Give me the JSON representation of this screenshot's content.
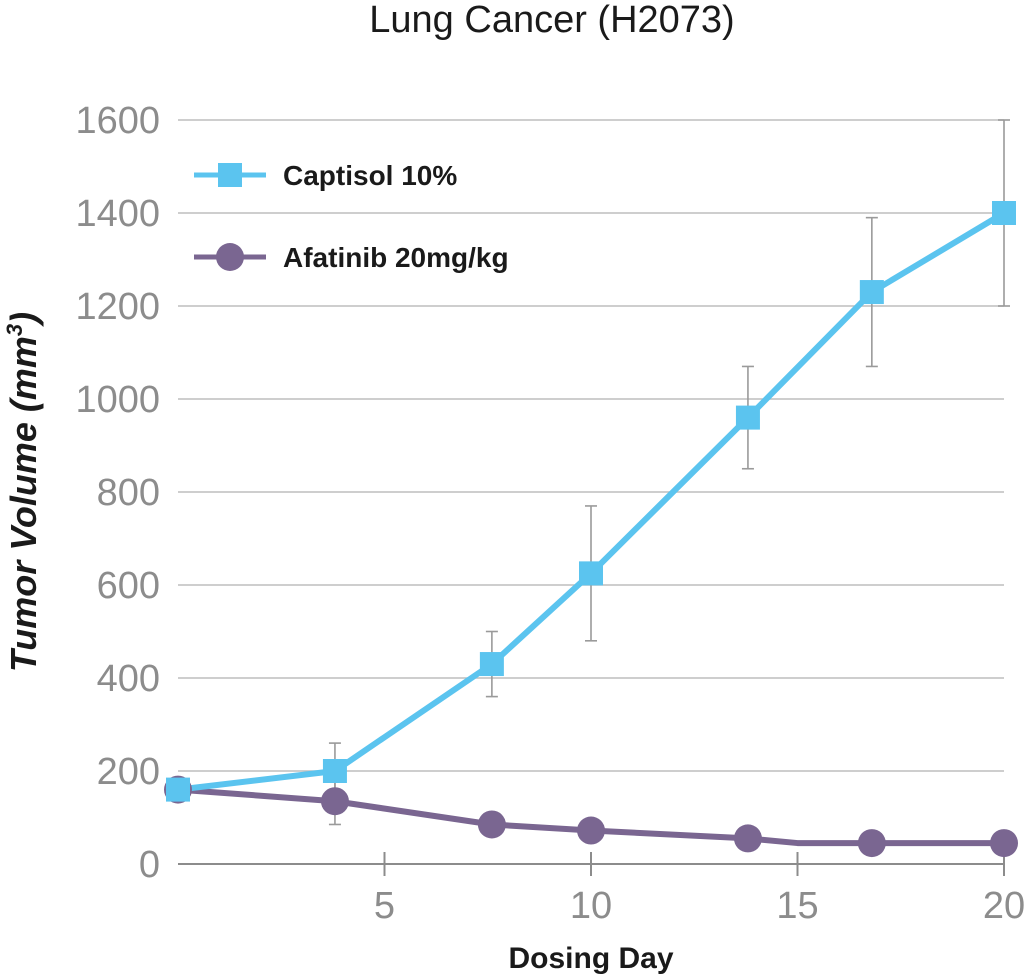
{
  "chart_data": {
    "type": "line",
    "title": "Lung Cancer (H2073)",
    "xlabel": "Dosing Day",
    "ylabel": "Tumor Volume (mm",
    "ylabel_sup": "3",
    "ylabel_close": ")",
    "xlim": [
      0,
      20
    ],
    "ylim": [
      0,
      1600
    ],
    "x_ticks": [
      5,
      10,
      15,
      20
    ],
    "y_ticks": [
      0,
      200,
      400,
      600,
      800,
      1000,
      1200,
      1400,
      1600
    ],
    "grid": true,
    "legend_position": "top-left",
    "series": [
      {
        "name": "Captisol 10%",
        "color": "#5bc4ef",
        "marker": "square",
        "x": [
          0,
          3.8,
          7.6,
          10,
          13.8,
          16.8,
          20
        ],
        "y": [
          160,
          200,
          430,
          625,
          960,
          1230,
          1400
        ],
        "error": [
          0,
          60,
          70,
          145,
          110,
          160,
          200
        ]
      },
      {
        "name": "Afatinib 20mg/kg",
        "color": "#7a6691",
        "marker": "circle",
        "x": [
          0,
          3.8,
          7.6,
          10,
          13.8,
          15,
          16.8,
          20
        ],
        "y": [
          160,
          135,
          85,
          72,
          55,
          45,
          45,
          45
        ],
        "error": [
          0,
          50,
          0,
          0,
          0,
          0,
          0,
          0
        ],
        "marker_mask": [
          true,
          true,
          true,
          true,
          true,
          false,
          true,
          true
        ]
      }
    ]
  }
}
